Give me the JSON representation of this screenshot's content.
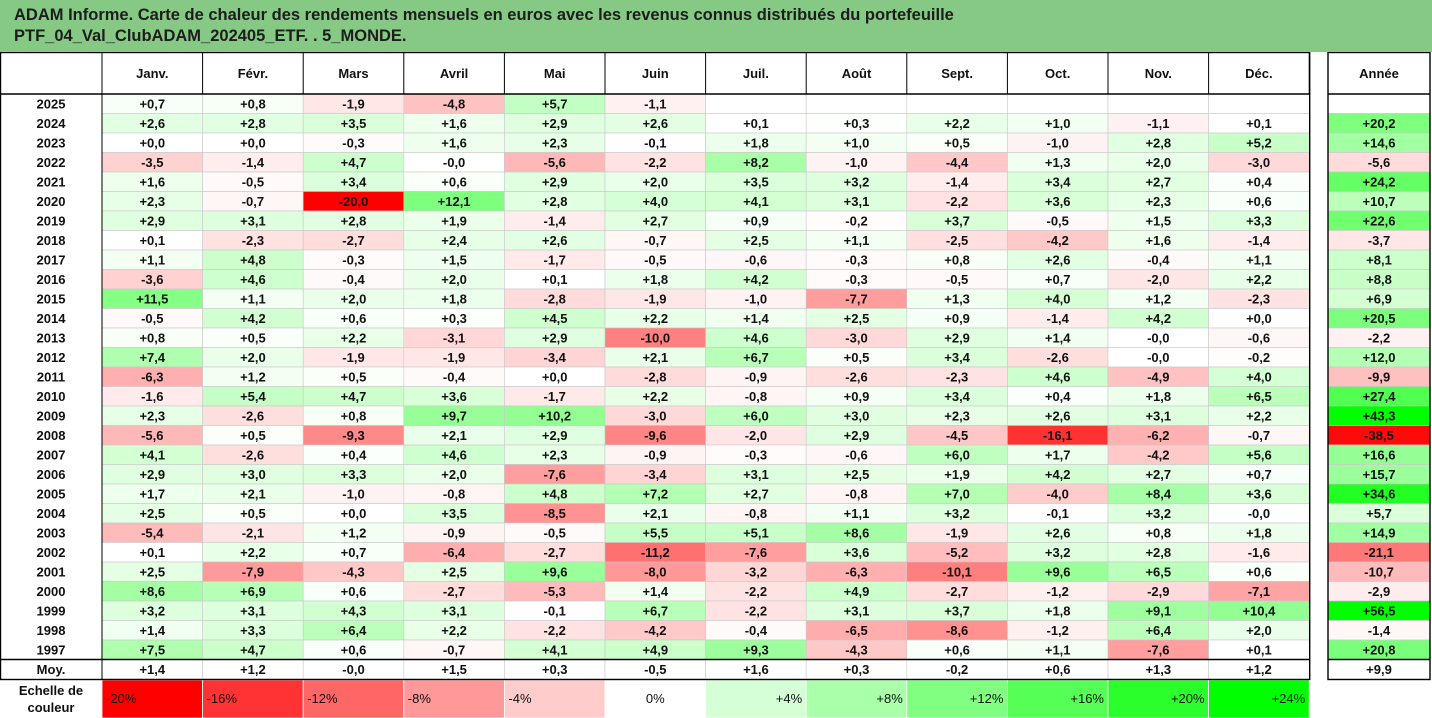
{
  "title": {
    "line1": "ADAM Informe. Carte de chaleur des rendements mensuels en euros avec les revenus connus distribués du portefeuille",
    "line2": "PTF_04_Val_ClubADAM_202405_ETF. . 5_MONDE."
  },
  "chart_data": {
    "type": "heatmap",
    "columns": [
      "Janv.",
      "Févr.",
      "Mars",
      "Avril",
      "Mai",
      "Juin",
      "Juil.",
      "Août",
      "Sept.",
      "Oct.",
      "Nov.",
      "Déc."
    ],
    "year_column": "Année",
    "rows": [
      {
        "year": "2025",
        "months": [
          "+0,7",
          "+0,8",
          "-1,9",
          "-4,8",
          "+5,7",
          "-1,1",
          "",
          "",
          "",
          "",
          "",
          ""
        ],
        "annual": ""
      },
      {
        "year": "2024",
        "months": [
          "+2,6",
          "+2,8",
          "+3,5",
          "+1,6",
          "+2,9",
          "+2,6",
          "+0,1",
          "+0,3",
          "+2,2",
          "+1,0",
          "-1,1",
          "+0,1"
        ],
        "annual": "+20,2"
      },
      {
        "year": "2023",
        "months": [
          "+0,0",
          "+0,0",
          "-0,3",
          "+1,6",
          "+2,3",
          "-0,1",
          "+1,8",
          "+1,0",
          "+0,5",
          "-1,0",
          "+2,8",
          "+5,2"
        ],
        "annual": "+14,6"
      },
      {
        "year": "2022",
        "months": [
          "-3,5",
          "-1,4",
          "+4,7",
          "-0,0",
          "-5,6",
          "-2,2",
          "+8,2",
          "-1,0",
          "-4,4",
          "+1,3",
          "+2,0",
          "-3,0"
        ],
        "annual": "-5,6"
      },
      {
        "year": "2021",
        "months": [
          "+1,6",
          "-0,5",
          "+3,4",
          "+0,6",
          "+2,9",
          "+2,0",
          "+3,5",
          "+3,2",
          "-1,4",
          "+3,4",
          "+2,7",
          "+0,4"
        ],
        "annual": "+24,2"
      },
      {
        "year": "2020",
        "months": [
          "+2,3",
          "-0,7",
          "-20,0",
          "+12,1",
          "+2,8",
          "+4,0",
          "+4,1",
          "+3,1",
          "-2,2",
          "+3,6",
          "+2,3",
          "+0,6"
        ],
        "annual": "+10,7"
      },
      {
        "year": "2019",
        "months": [
          "+2,9",
          "+3,1",
          "+2,8",
          "+1,9",
          "-1,4",
          "+2,7",
          "+0,9",
          "-0,2",
          "+3,7",
          "-0,5",
          "+1,5",
          "+3,3"
        ],
        "annual": "+22,6"
      },
      {
        "year": "2018",
        "months": [
          "+0,1",
          "-2,3",
          "-2,7",
          "+2,4",
          "+2,6",
          "-0,7",
          "+2,5",
          "+1,1",
          "-2,5",
          "-4,2",
          "+1,6",
          "-1,4"
        ],
        "annual": "-3,7"
      },
      {
        "year": "2017",
        "months": [
          "+1,1",
          "+4,8",
          "-0,3",
          "+1,5",
          "-1,7",
          "-0,5",
          "-0,6",
          "-0,3",
          "+0,8",
          "+2,6",
          "-0,4",
          "+1,1"
        ],
        "annual": "+8,1"
      },
      {
        "year": "2016",
        "months": [
          "-3,6",
          "+4,6",
          "-0,4",
          "+2,0",
          "+0,1",
          "+1,8",
          "+4,2",
          "-0,3",
          "-0,5",
          "+0,7",
          "-2,0",
          "+2,2"
        ],
        "annual": "+8,8"
      },
      {
        "year": "2015",
        "months": [
          "+11,5",
          "+1,1",
          "+2,0",
          "+1,8",
          "-2,8",
          "-1,9",
          "-1,0",
          "-7,7",
          "+1,3",
          "+4,0",
          "+1,2",
          "-2,3"
        ],
        "annual": "+6,9"
      },
      {
        "year": "2014",
        "months": [
          "-0,5",
          "+4,2",
          "+0,6",
          "+0,3",
          "+4,5",
          "+2,2",
          "+1,4",
          "+2,5",
          "+0,9",
          "-1,4",
          "+4,2",
          "+0,0"
        ],
        "annual": "+20,5"
      },
      {
        "year": "2013",
        "months": [
          "+0,8",
          "+0,5",
          "+2,2",
          "-3,1",
          "+2,9",
          "-10,0",
          "+4,6",
          "-3,0",
          "+2,9",
          "+1,4",
          "-0,0",
          "-0,6"
        ],
        "annual": "-2,2"
      },
      {
        "year": "2012",
        "months": [
          "+7,4",
          "+2,0",
          "-1,9",
          "-1,9",
          "-3,4",
          "+2,1",
          "+6,7",
          "+0,5",
          "+3,4",
          "-2,6",
          "-0,0",
          "-0,2"
        ],
        "annual": "+12,0"
      },
      {
        "year": "2011",
        "months": [
          "-6,3",
          "+1,2",
          "+0,5",
          "-0,4",
          "+0,0",
          "-2,8",
          "-0,9",
          "-2,6",
          "-2,3",
          "+4,6",
          "-4,9",
          "+4,0"
        ],
        "annual": "-9,9"
      },
      {
        "year": "2010",
        "months": [
          "-1,6",
          "+5,4",
          "+4,7",
          "+3,6",
          "-1,7",
          "+2,2",
          "-0,8",
          "+0,9",
          "+3,4",
          "+0,4",
          "+1,8",
          "+6,5"
        ],
        "annual": "+27,4"
      },
      {
        "year": "2009",
        "months": [
          "+2,3",
          "-2,6",
          "+0,8",
          "+9,7",
          "+10,2",
          "-3,0",
          "+6,0",
          "+3,0",
          "+2,3",
          "+2,6",
          "+3,1",
          "+2,2"
        ],
        "annual": "+43,3"
      },
      {
        "year": "2008",
        "months": [
          "-5,6",
          "+0,5",
          "-9,3",
          "+2,1",
          "+2,9",
          "-9,6",
          "-2,0",
          "+2,9",
          "-4,5",
          "-16,1",
          "-6,2",
          "-0,7"
        ],
        "annual": "-38,5"
      },
      {
        "year": "2007",
        "months": [
          "+4,1",
          "-2,6",
          "+0,4",
          "+4,6",
          "+2,3",
          "-0,9",
          "-0,3",
          "-0,6",
          "+6,0",
          "+1,7",
          "-4,2",
          "+5,6"
        ],
        "annual": "+16,6"
      },
      {
        "year": "2006",
        "months": [
          "+2,9",
          "+3,0",
          "+3,3",
          "+2,0",
          "-7,6",
          "-3,4",
          "+3,1",
          "+2,5",
          "+1,9",
          "+4,2",
          "+2,7",
          "+0,7"
        ],
        "annual": "+15,7"
      },
      {
        "year": "2005",
        "months": [
          "+1,7",
          "+2,1",
          "-1,0",
          "-0,8",
          "+4,8",
          "+7,2",
          "+2,7",
          "-0,8",
          "+7,0",
          "-4,0",
          "+8,4",
          "+3,6"
        ],
        "annual": "+34,6"
      },
      {
        "year": "2004",
        "months": [
          "+2,5",
          "+0,5",
          "+0,0",
          "+3,5",
          "-8,5",
          "+2,1",
          "-0,8",
          "+1,1",
          "+3,2",
          "-0,1",
          "+3,2",
          "-0,0"
        ],
        "annual": "+5,7"
      },
      {
        "year": "2003",
        "months": [
          "-5,4",
          "-2,1",
          "+1,2",
          "-0,9",
          "-0,5",
          "+5,5",
          "+5,1",
          "+8,6",
          "-1,9",
          "+2,6",
          "+0,8",
          "+1,8"
        ],
        "annual": "+14,9"
      },
      {
        "year": "2002",
        "months": [
          "+0,1",
          "+2,2",
          "+0,7",
          "-6,4",
          "-2,7",
          "-11,2",
          "-7,6",
          "+3,6",
          "-5,2",
          "+3,2",
          "+2,8",
          "-1,6"
        ],
        "annual": "-21,1"
      },
      {
        "year": "2001",
        "months": [
          "+2,5",
          "-7,9",
          "-4,3",
          "+2,5",
          "+9,6",
          "-8,0",
          "-3,2",
          "-6,3",
          "-10,1",
          "+9,6",
          "+6,5",
          "+0,6"
        ],
        "annual": "-10,7"
      },
      {
        "year": "2000",
        "months": [
          "+8,6",
          "+6,9",
          "+0,6",
          "-2,7",
          "-5,3",
          "+1,4",
          "-2,2",
          "+4,9",
          "-2,7",
          "-1,2",
          "-2,9",
          "-7,1"
        ],
        "annual": "-2,9"
      },
      {
        "year": "1999",
        "months": [
          "+3,2",
          "+3,1",
          "+4,3",
          "+3,1",
          "-0,1",
          "+6,7",
          "-2,2",
          "+3,1",
          "+3,7",
          "+1,8",
          "+9,1",
          "+10,4"
        ],
        "annual": "+56,5"
      },
      {
        "year": "1998",
        "months": [
          "+1,4",
          "+3,3",
          "+6,4",
          "+2,2",
          "-2,2",
          "-4,2",
          "-0,4",
          "-6,5",
          "-8,6",
          "-1,2",
          "+6,4",
          "+2,0"
        ],
        "annual": "-1,4"
      },
      {
        "year": "1997",
        "months": [
          "+7,5",
          "+4,7",
          "+0,6",
          "-0,7",
          "+4,1",
          "+4,9",
          "+9,3",
          "-4,3",
          "+0,6",
          "+1,1",
          "-7,6",
          "+0,1"
        ],
        "annual": "+20,8"
      }
    ],
    "average": {
      "label": "Moy.",
      "months": [
        "+1,4",
        "+1,2",
        "-0,0",
        "+1,5",
        "+0,3",
        "-0,5",
        "+1,6",
        "+0,3",
        "-0,2",
        "+0,6",
        "+1,3",
        "+1,2"
      ],
      "annual": "+9,9"
    },
    "scale": {
      "label_line1": "Echelle de",
      "label_line2": "couleur",
      "stops": [
        {
          "label": "-20%",
          "value": -20
        },
        {
          "label": "-16%",
          "value": -16
        },
        {
          "label": "-12%",
          "value": -12
        },
        {
          "label": "-8%",
          "value": -8
        },
        {
          "label": "-4%",
          "value": -4
        },
        {
          "label": "0%",
          "value": 0
        },
        {
          "label": "+4%",
          "value": 4
        },
        {
          "label": "+8%",
          "value": 8
        },
        {
          "label": "+12%",
          "value": 12
        },
        {
          "label": "+16%",
          "value": 16
        },
        {
          "label": "+20%",
          "value": 20
        },
        {
          "label": "+24%",
          "value": 24
        }
      ]
    },
    "colors": {
      "negative_max": "#ff0000",
      "positive_max": "#00ff00",
      "neutral": "#ffffff",
      "title_bar": "#86c985",
      "grid": "#c8c8c8",
      "border": "#000000"
    }
  }
}
